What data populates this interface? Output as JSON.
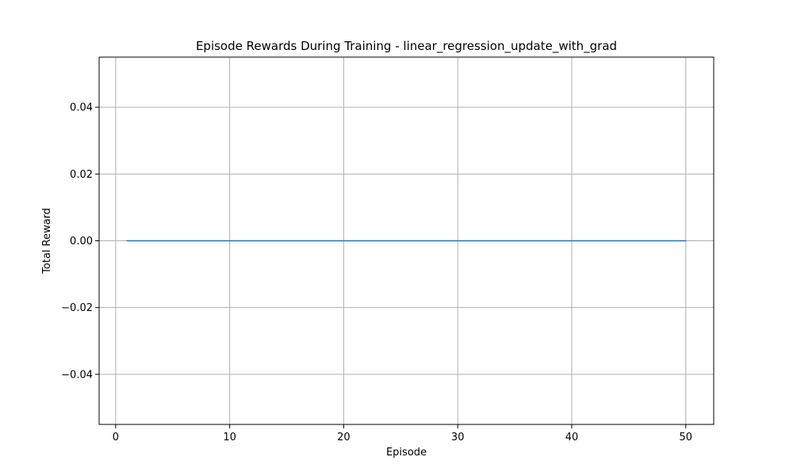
{
  "chart_data": {
    "type": "line",
    "title": "Episode Rewards During Training - linear_regression_update_with_grad",
    "xlabel": "Episode",
    "ylabel": "Total Reward",
    "xlim": [
      -1.45,
      52.45
    ],
    "ylim": [
      -0.055,
      0.055
    ],
    "xticks": [
      0,
      10,
      20,
      30,
      40,
      50
    ],
    "xtick_labels": [
      "0",
      "10",
      "20",
      "30",
      "40",
      "50"
    ],
    "yticks": [
      -0.04,
      -0.02,
      0.0,
      0.02,
      0.04
    ],
    "ytick_labels": [
      "−0.04",
      "−0.02",
      "0.00",
      "0.02",
      "0.04"
    ],
    "grid": true,
    "series": [
      {
        "color": "#1f77b4",
        "x": [
          1,
          2,
          3,
          4,
          5,
          6,
          7,
          8,
          9,
          10,
          11,
          12,
          13,
          14,
          15,
          16,
          17,
          18,
          19,
          20,
          21,
          22,
          23,
          24,
          25,
          26,
          27,
          28,
          29,
          30,
          31,
          32,
          33,
          34,
          35,
          36,
          37,
          38,
          39,
          40,
          41,
          42,
          43,
          44,
          45,
          46,
          47,
          48,
          49,
          50
        ],
        "values": [
          0,
          0,
          0,
          0,
          0,
          0,
          0,
          0,
          0,
          0,
          0,
          0,
          0,
          0,
          0,
          0,
          0,
          0,
          0,
          0,
          0,
          0,
          0,
          0,
          0,
          0,
          0,
          0,
          0,
          0,
          0,
          0,
          0,
          0,
          0,
          0,
          0,
          0,
          0,
          0,
          0,
          0,
          0,
          0,
          0,
          0,
          0,
          0,
          0,
          0
        ]
      }
    ]
  }
}
